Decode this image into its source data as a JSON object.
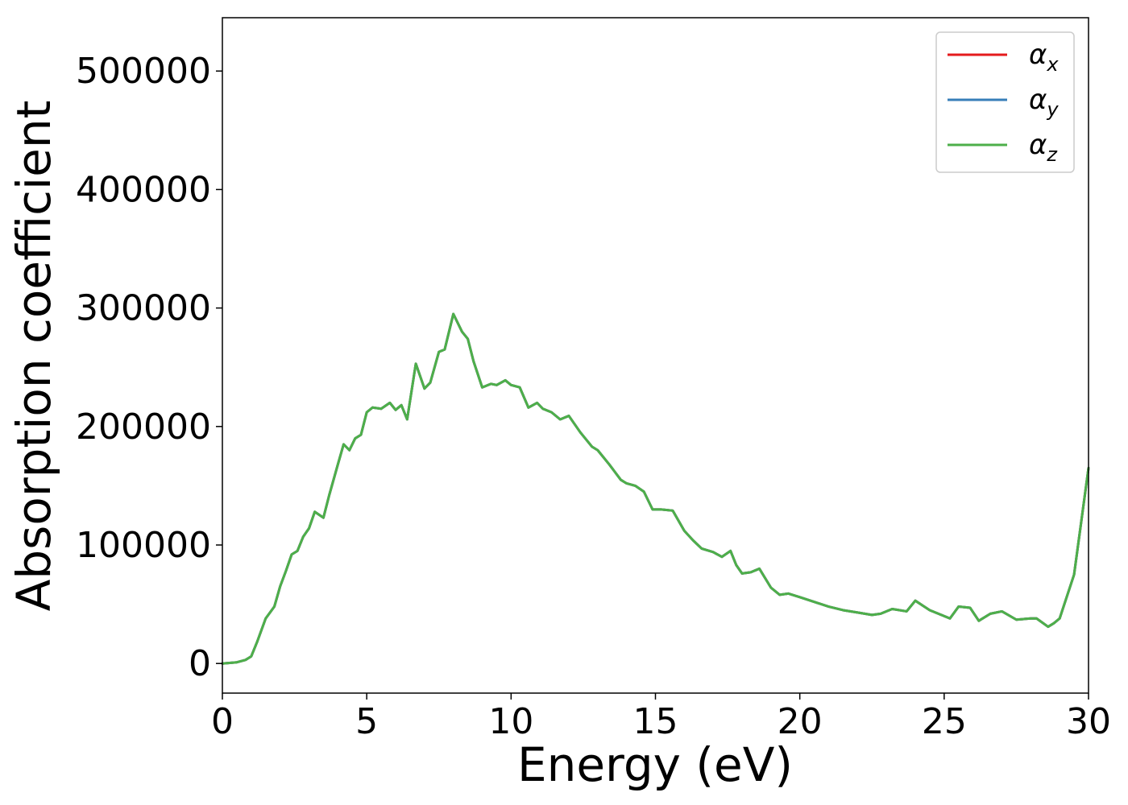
{
  "chart_data": {
    "type": "line",
    "xlabel": "Energy (eV)",
    "ylabel": "Absorption coefficient",
    "xlim": [
      0,
      30
    ],
    "ylim": [
      -25000,
      545000
    ],
    "xticks": [
      0,
      5,
      10,
      15,
      20,
      25,
      30
    ],
    "xtick_labels": [
      "0",
      "5",
      "10",
      "15",
      "20",
      "25",
      "30"
    ],
    "yticks": [
      0,
      100000,
      200000,
      300000,
      400000,
      500000
    ],
    "ytick_labels": [
      "0",
      "100000",
      "200000",
      "300000",
      "400000",
      "500000"
    ],
    "grid": false,
    "legend_position": "top-right",
    "x": [
      0,
      0.5,
      0.8,
      1.0,
      1.2,
      1.5,
      1.8,
      2.0,
      2.2,
      2.4,
      2.6,
      2.8,
      3.0,
      3.2,
      3.5,
      3.7,
      4.0,
      4.2,
      4.4,
      4.6,
      4.8,
      5.0,
      5.2,
      5.5,
      5.8,
      6.0,
      6.2,
      6.4,
      6.7,
      7.0,
      7.2,
      7.5,
      7.7,
      8.0,
      8.3,
      8.5,
      8.7,
      9.0,
      9.3,
      9.5,
      9.8,
      10.0,
      10.3,
      10.6,
      10.9,
      11.1,
      11.4,
      11.7,
      12.0,
      12.4,
      12.8,
      13.0,
      13.4,
      13.8,
      14.0,
      14.3,
      14.6,
      14.9,
      15.2,
      15.6,
      16.0,
      16.3,
      16.6,
      17.0,
      17.3,
      17.6,
      17.8,
      18.0,
      18.3,
      18.6,
      19.0,
      19.3,
      19.6,
      20.0,
      20.5,
      21.0,
      21.5,
      22.0,
      22.5,
      22.8,
      23.2,
      23.7,
      24.0,
      24.5,
      24.8,
      25.2,
      25.5,
      25.9,
      26.2,
      26.6,
      27.0,
      27.5,
      28.0,
      28.2,
      28.6,
      28.8,
      29.0,
      29.5,
      30.0
    ],
    "series": [
      {
        "name": "α_x",
        "color": "#e41a1c",
        "values": [
          0,
          1000,
          3000,
          6000,
          18000,
          38000,
          48000,
          65000,
          78000,
          92000,
          95000,
          107000,
          114000,
          128000,
          123000,
          142000,
          168000,
          185000,
          180000,
          190000,
          193000,
          212000,
          216000,
          215000,
          220000,
          214000,
          218000,
          206000,
          253000,
          232000,
          237000,
          263000,
          265000,
          295000,
          280000,
          274000,
          255000,
          233000,
          236000,
          235000,
          239000,
          235000,
          233000,
          216000,
          220000,
          215000,
          212000,
          206000,
          209000,
          195000,
          183000,
          180000,
          168000,
          155000,
          152000,
          150000,
          145000,
          130000,
          130000,
          129000,
          112000,
          104000,
          97000,
          94000,
          90000,
          95000,
          83000,
          76000,
          77000,
          80000,
          64000,
          58000,
          59000,
          56000,
          52000,
          48000,
          45000,
          43000,
          41000,
          42000,
          46000,
          44000,
          53000,
          45000,
          42000,
          38000,
          48000,
          47000,
          36000,
          42000,
          44000,
          37000,
          38000,
          38000,
          31000,
          34000,
          38000,
          75000,
          165000
        ]
      },
      {
        "name": "α_y",
        "color": "#377eb8",
        "values": [
          0,
          1000,
          3000,
          6000,
          18000,
          38000,
          48000,
          65000,
          78000,
          92000,
          95000,
          107000,
          114000,
          128000,
          123000,
          142000,
          168000,
          185000,
          180000,
          190000,
          193000,
          212000,
          216000,
          215000,
          220000,
          214000,
          218000,
          206000,
          253000,
          232000,
          237000,
          263000,
          265000,
          295000,
          280000,
          274000,
          255000,
          233000,
          236000,
          235000,
          239000,
          235000,
          233000,
          216000,
          220000,
          215000,
          212000,
          206000,
          209000,
          195000,
          183000,
          180000,
          168000,
          155000,
          152000,
          150000,
          145000,
          130000,
          130000,
          129000,
          112000,
          104000,
          97000,
          94000,
          90000,
          95000,
          83000,
          76000,
          77000,
          80000,
          64000,
          58000,
          59000,
          56000,
          52000,
          48000,
          45000,
          43000,
          41000,
          42000,
          46000,
          44000,
          53000,
          45000,
          42000,
          38000,
          48000,
          47000,
          36000,
          42000,
          44000,
          37000,
          38000,
          38000,
          31000,
          34000,
          38000,
          75000,
          165000
        ]
      },
      {
        "name": "α_z",
        "color": "#4daf4a",
        "values": [
          0,
          1000,
          3000,
          6000,
          18000,
          38000,
          48000,
          65000,
          78000,
          92000,
          95000,
          107000,
          114000,
          128000,
          123000,
          142000,
          168000,
          185000,
          180000,
          190000,
          193000,
          212000,
          216000,
          215000,
          220000,
          214000,
          218000,
          206000,
          253000,
          232000,
          237000,
          263000,
          265000,
          295000,
          280000,
          274000,
          255000,
          233000,
          236000,
          235000,
          239000,
          235000,
          233000,
          216000,
          220000,
          215000,
          212000,
          206000,
          209000,
          195000,
          183000,
          180000,
          168000,
          155000,
          152000,
          150000,
          145000,
          130000,
          130000,
          129000,
          112000,
          104000,
          97000,
          94000,
          90000,
          95000,
          83000,
          76000,
          77000,
          80000,
          64000,
          58000,
          59000,
          56000,
          52000,
          48000,
          45000,
          43000,
          41000,
          42000,
          46000,
          44000,
          53000,
          45000,
          42000,
          38000,
          48000,
          47000,
          36000,
          42000,
          44000,
          37000,
          38000,
          38000,
          31000,
          34000,
          38000,
          75000,
          165000
        ]
      }
    ],
    "legend": [
      {
        "symbol": "α",
        "sub": "x",
        "color": "#e41a1c"
      },
      {
        "symbol": "α",
        "sub": "y",
        "color": "#377eb8"
      },
      {
        "symbol": "α",
        "sub": "z",
        "color": "#4daf4a"
      }
    ]
  }
}
